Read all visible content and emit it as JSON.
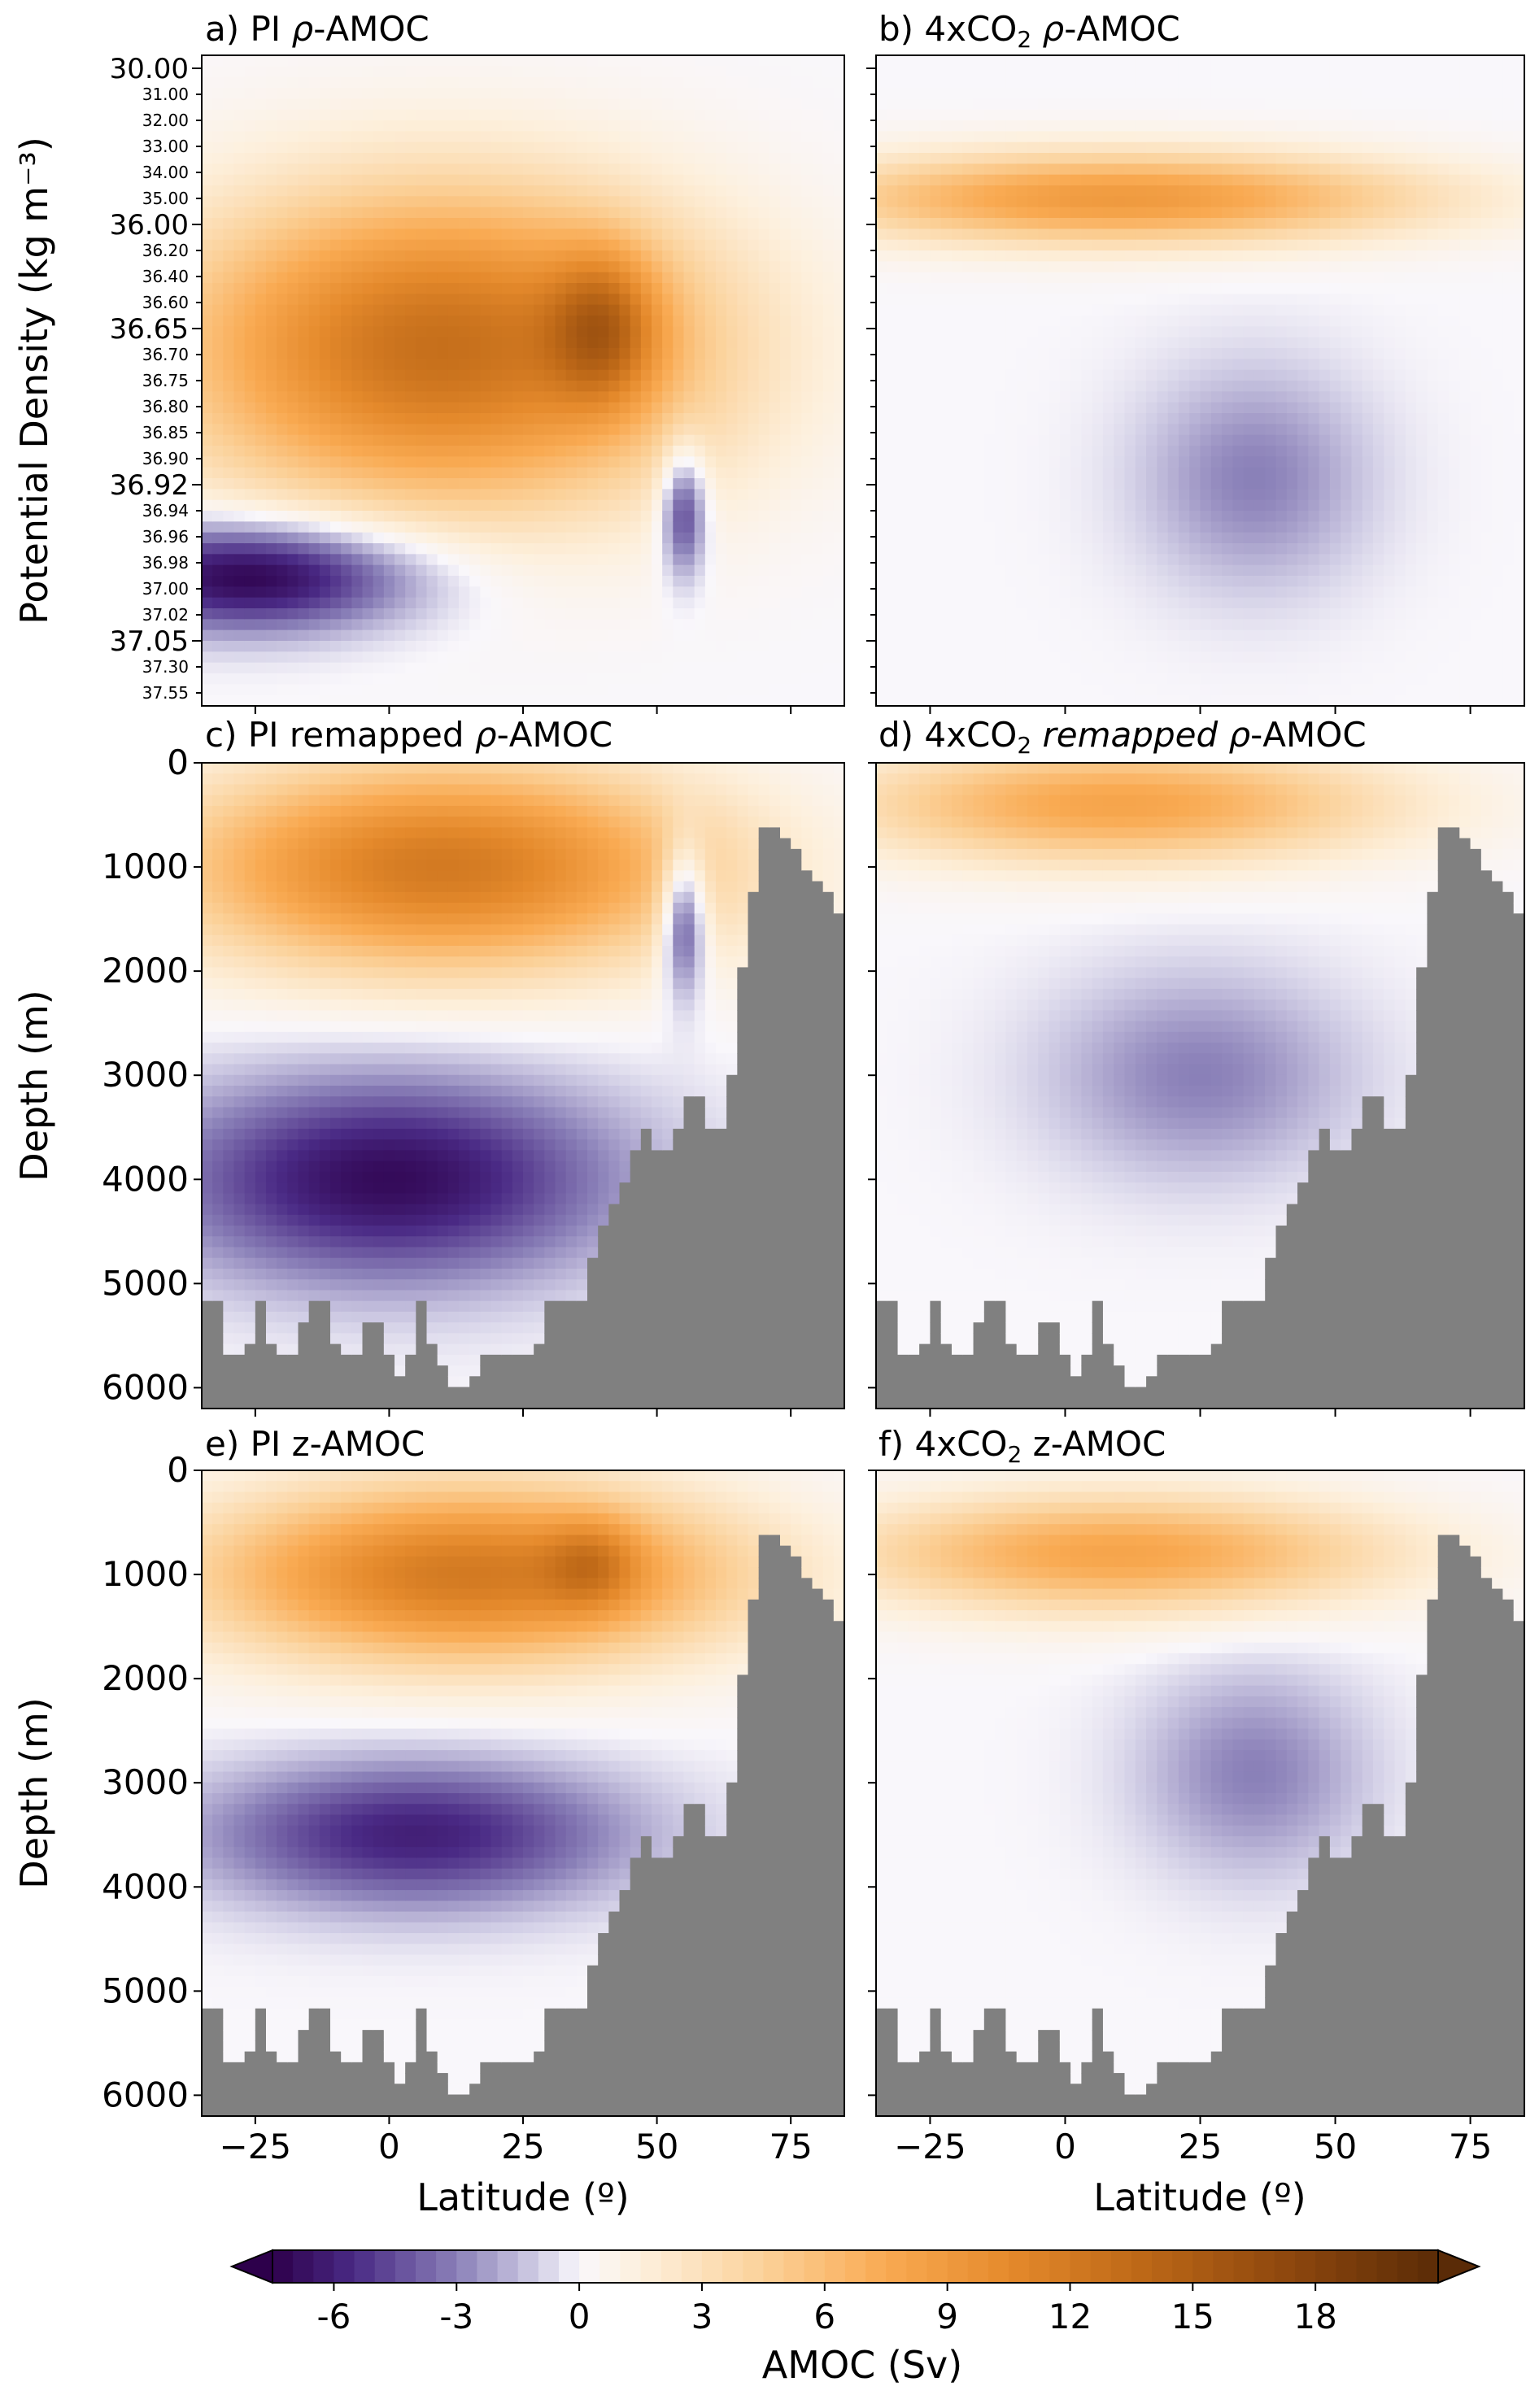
{
  "figure": {
    "colorbar": {
      "label": "AMOC (Sv)",
      "vmin": -7.5,
      "vmax": 21,
      "ticks": [
        -6,
        -3,
        0,
        3,
        6,
        9,
        12,
        15,
        18
      ],
      "tick_labels": [
        "-6",
        "-3",
        "0",
        "3",
        "6",
        "9",
        "12",
        "15",
        "18"
      ],
      "stops": [
        {
          "v": -7.5,
          "color": "#2d004b"
        },
        {
          "v": -5.5,
          "color": "#4a2a85"
        },
        {
          "v": -3.0,
          "color": "#8a80b8"
        },
        {
          "v": -1.0,
          "color": "#d2cfe6"
        },
        {
          "v": 0.0,
          "color": "#f9f7fb"
        },
        {
          "v": 1.5,
          "color": "#fdf0dd"
        },
        {
          "v": 4.5,
          "color": "#fbd199"
        },
        {
          "v": 7.5,
          "color": "#f9aa52"
        },
        {
          "v": 10.5,
          "color": "#e58a2c"
        },
        {
          "v": 13.5,
          "color": "#c06a18"
        },
        {
          "v": 17.0,
          "color": "#924a0e"
        },
        {
          "v": 21.0,
          "color": "#5a2b07"
        }
      ]
    },
    "latitude_axis": {
      "label": "Latitude (º)",
      "range": [
        -35,
        85
      ],
      "ticks": [
        -25,
        0,
        25,
        50,
        75
      ],
      "tick_labels": [
        "−25",
        "0",
        "25",
        "50",
        "75"
      ]
    },
    "depth_axis": {
      "label": "Depth (m)",
      "range": [
        0,
        6200
      ],
      "ticks": [
        0,
        1000,
        2000,
        3000,
        4000,
        5000,
        6000
      ],
      "tick_labels": [
        "0",
        "1000",
        "2000",
        "3000",
        "4000",
        "5000",
        "6000"
      ]
    },
    "density_axis": {
      "label": "Potential Density (kg m⁻³)",
      "major_ticks": [
        "30.00",
        "36.00",
        "36.65",
        "36.92",
        "37.05"
      ],
      "minor_ticks": [
        "31.00",
        "32.00",
        "33.00",
        "34.00",
        "35.00",
        "36.20",
        "36.40",
        "36.60",
        "36.70",
        "36.75",
        "36.80",
        "36.85",
        "36.90",
        "36.94",
        "36.96",
        "36.98",
        "37.00",
        "37.02",
        "37.30",
        "37.55"
      ],
      "all_ticks": [
        "30.00",
        "31.00",
        "32.00",
        "33.00",
        "34.00",
        "35.00",
        "36.00",
        "36.20",
        "36.40",
        "36.60",
        "36.65",
        "36.70",
        "36.75",
        "36.80",
        "36.85",
        "36.90",
        "36.92",
        "36.94",
        "36.96",
        "36.98",
        "37.00",
        "37.02",
        "37.05",
        "37.30",
        "37.55"
      ]
    },
    "bathymetry_depth": [
      5200,
      5200,
      5700,
      5700,
      5200,
      5700,
      5700,
      5200,
      5200,
      5700,
      5700,
      5200,
      5700,
      6000,
      5200,
      5700,
      6000,
      6000,
      5700,
      5700,
      5700,
      5700,
      5200,
      5200,
      5200,
      4600,
      4200,
      3900,
      3500,
      3800,
      3500,
      3000,
      3500,
      3500,
      2000,
      800,
      500,
      1500
    ],
    "bathymetry_lat": [
      -35,
      -32,
      -30,
      -27,
      -24,
      -21,
      -18,
      -15,
      -12,
      -9,
      -6,
      -3,
      0,
      3,
      6,
      9,
      12,
      15,
      18,
      21,
      24,
      27,
      30,
      33,
      36,
      39,
      42,
      45,
      48,
      51,
      54,
      57,
      60,
      63,
      66,
      69,
      71,
      85
    ]
  },
  "chart_data": [
    {
      "type": "heatmap",
      "panel": "a",
      "title_prefix": "a) PI ",
      "title_rho": "ρ",
      "title_suffix": "-AMOC",
      "xlabel": "",
      "ylabel": "Potential Density (kg m⁻³)",
      "vertical": "density",
      "scenario": "PI",
      "max_sv": 19,
      "min_sv": -7.5,
      "features": [
        {
          "lat": 10,
          "level": 0.45,
          "sigma_lat": 35,
          "sigma_level": 0.17,
          "sv": 13
        },
        {
          "lat": 40,
          "level": 0.42,
          "sigma_lat": 7,
          "sigma_level": 0.08,
          "sv": 7
        },
        {
          "lat": -25,
          "level": 0.8,
          "sigma_lat": 22,
          "sigma_level": 0.06,
          "sv": -8
        },
        {
          "lat": 55,
          "level": 0.7,
          "sigma_lat": 3,
          "sigma_level": 0.07,
          "sv": -6
        }
      ]
    },
    {
      "type": "heatmap",
      "panel": "b",
      "title_prefix": "b) 4xCO",
      "title_sub": "2",
      "title_rho": " ρ",
      "title_suffix": "-AMOC",
      "xlabel": "",
      "ylabel": "",
      "vertical": "density",
      "scenario": "4xCO2",
      "max_sv": 12,
      "min_sv": -3,
      "features": [
        {
          "lat": 10,
          "level": 0.22,
          "sigma_lat": 40,
          "sigma_level": 0.05,
          "sv": 9
        },
        {
          "lat": 35,
          "level": 0.65,
          "sigma_lat": 15,
          "sigma_level": 0.12,
          "sv": -3
        }
      ]
    },
    {
      "type": "heatmap",
      "panel": "c",
      "title_prefix": "c) PI remapped ",
      "title_rho": "ρ",
      "title_suffix": "-AMOC",
      "xlabel": "",
      "ylabel": "Depth (m)",
      "vertical": "depth",
      "scenario": "PI",
      "max_sv": 18,
      "min_sv": -7.5,
      "features": [
        {
          "lat": 10,
          "level": 1000,
          "sigma_lat": 35,
          "sigma_level": 700,
          "sv": 12
        },
        {
          "lat": 0,
          "level": 4000,
          "sigma_lat": 30,
          "sigma_level": 700,
          "sv": -7
        },
        {
          "lat": 55,
          "level": 1500,
          "sigma_lat": 3,
          "sigma_level": 500,
          "sv": -7
        }
      ]
    },
    {
      "type": "heatmap",
      "panel": "d",
      "title_prefix": "d) 4xCO",
      "title_sub": "2",
      "title_rho": " remapped ρ",
      "title_suffix": "-AMOC",
      "xlabel": "",
      "ylabel": "",
      "vertical": "depth",
      "scenario": "4xCO2",
      "max_sv": 9,
      "min_sv": -3,
      "features": [
        {
          "lat": 10,
          "level": 400,
          "sigma_lat": 35,
          "sigma_level": 400,
          "sv": 8
        },
        {
          "lat": 25,
          "level": 3000,
          "sigma_lat": 20,
          "sigma_level": 700,
          "sv": -3
        }
      ]
    },
    {
      "type": "heatmap",
      "panel": "e",
      "title_prefix": "e) PI z-AMOC",
      "xlabel": "",
      "ylabel": "Depth (m)",
      "vertical": "depth",
      "scenario": "PI",
      "max_sv": 16,
      "min_sv": -6,
      "features": [
        {
          "lat": 15,
          "level": 1000,
          "sigma_lat": 35,
          "sigma_level": 600,
          "sv": 12
        },
        {
          "lat": 38,
          "level": 900,
          "sigma_lat": 6,
          "sigma_level": 300,
          "sv": 4
        },
        {
          "lat": 5,
          "level": 3500,
          "sigma_lat": 28,
          "sigma_level": 500,
          "sv": -6
        }
      ]
    },
    {
      "type": "heatmap",
      "panel": "f",
      "title_prefix": "f) 4xCO",
      "title_sub": "2",
      "title_suffix": " z-AMOC",
      "xlabel": "Latitude (º)",
      "ylabel": "",
      "vertical": "depth",
      "scenario": "4xCO2",
      "max_sv": 9,
      "min_sv": -3,
      "features": [
        {
          "lat": 10,
          "level": 800,
          "sigma_lat": 35,
          "sigma_level": 400,
          "sv": 8
        },
        {
          "lat": 35,
          "level": 2900,
          "sigma_lat": 15,
          "sigma_level": 700,
          "sv": -3
        }
      ]
    }
  ]
}
